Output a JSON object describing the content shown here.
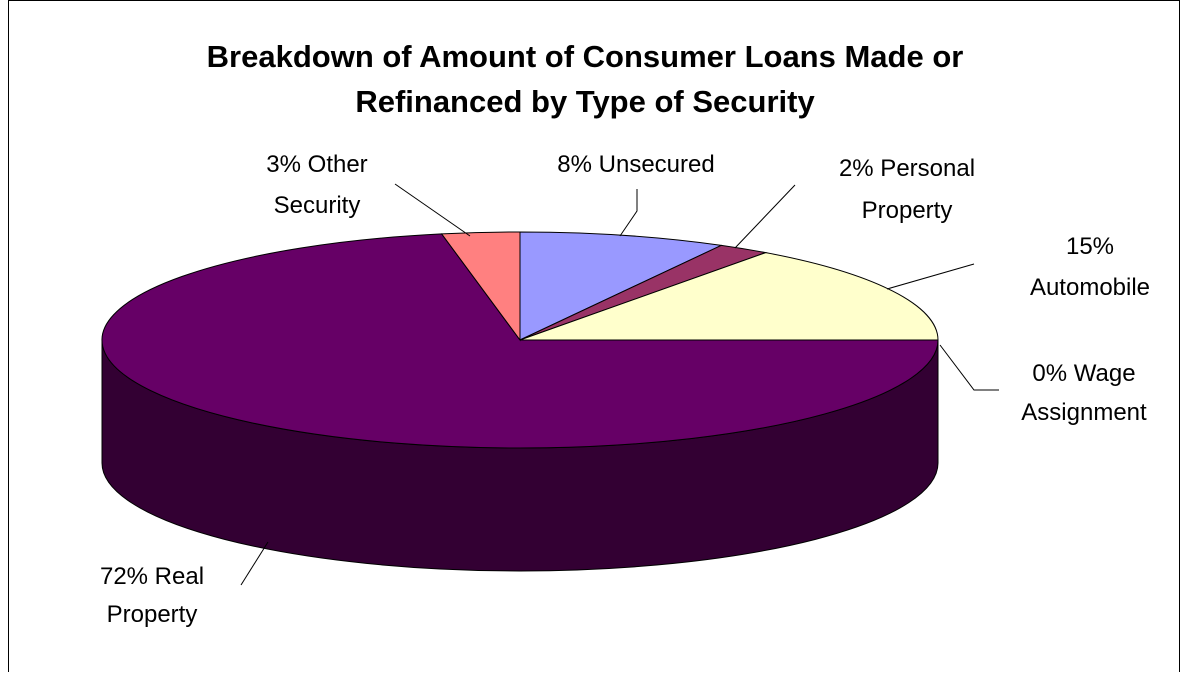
{
  "chart_data": {
    "type": "pie",
    "title_lines": [
      "Breakdown of Amount of Consumer Loans Made or",
      "Refinanced by Type of Security"
    ],
    "slices": [
      {
        "key": "unsecured",
        "percent": 8,
        "label_lines": [
          "8% Unsecured"
        ],
        "color": "#9999FF"
      },
      {
        "key": "personal",
        "percent": 2,
        "label_lines": [
          "2% Personal",
          "Property"
        ],
        "color": "#993366"
      },
      {
        "key": "automobile",
        "percent": 15,
        "label_lines": [
          "15%",
          "Automobile"
        ],
        "color": "#FFFFCC"
      },
      {
        "key": "wage",
        "percent": 0,
        "label_lines": [
          "0% Wage",
          "Assignment"
        ],
        "color": "#CCFFFF"
      },
      {
        "key": "real",
        "percent": 72,
        "label_lines": [
          "72% Real",
          "Property"
        ],
        "color": "#660066"
      },
      {
        "key": "other",
        "percent": 3,
        "label_lines": [
          "3% Other",
          "Security"
        ],
        "color": "#FF8080"
      }
    ]
  }
}
